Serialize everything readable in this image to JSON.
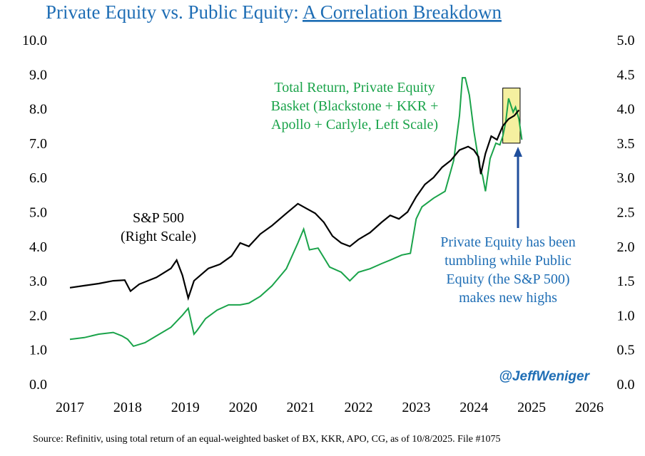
{
  "title": {
    "main": "Private Equity vs. Public Equity: ",
    "link": "A Correlation Breakdown"
  },
  "handle": "@JeffWeniger",
  "source": "Source: Refinitiv, using total return of an equal-weighted basket of BX, KKR, APO, CG, as of 10/8/2025. File #1075",
  "colors": {
    "title": "#1f6eb5",
    "pe_series": "#1aa34a",
    "sp_series": "#000000",
    "arrow": "#1f4e9c",
    "highlight_fill": "#f5f0a0",
    "highlight_stroke": "#000000"
  },
  "annotations": {
    "pe_label": [
      "Total Return, Private Equity",
      "Basket (Blackstone + KKR +",
      "Apollo + Carlyle, Left Scale)"
    ],
    "sp_label": [
      "S&P 500",
      "(Right Scale)"
    ],
    "callout": [
      "Private Equity has been",
      "tumbling while Public",
      "Equity (the S&P 500)",
      "makes new highs"
    ]
  },
  "chart_data": {
    "type": "line",
    "x_ticks": [
      "2017",
      "2018",
      "2019",
      "2020",
      "2021",
      "2022",
      "2023",
      "2024",
      "2025",
      "2026"
    ],
    "xlim": [
      2017,
      2026
    ],
    "y_left": {
      "ticks": [
        "10.0",
        "9.0",
        "8.0",
        "7.0",
        "6.0",
        "5.0",
        "4.0",
        "3.0",
        "2.0",
        "1.0",
        "0.0"
      ],
      "ylim": [
        0,
        10
      ]
    },
    "y_right": {
      "ticks": [
        "5.0",
        "4.5",
        "4.0",
        "3.5",
        "3.0",
        "2.5",
        "2.0",
        "1.5",
        "1.0",
        "0.5",
        "0.0"
      ],
      "ylim": [
        0,
        5
      ]
    },
    "grid": false,
    "series": [
      {
        "name": "Total Return, Private Equity Basket (Blackstone + KKR + Apollo + Carlyle, Left Scale)",
        "axis": "left",
        "color": "#1aa34a",
        "points": [
          [
            2017.0,
            1.3
          ],
          [
            2017.25,
            1.35
          ],
          [
            2017.5,
            1.45
          ],
          [
            2017.75,
            1.5
          ],
          [
            2017.9,
            1.4
          ],
          [
            2018.0,
            1.3
          ],
          [
            2018.1,
            1.1
          ],
          [
            2018.3,
            1.2
          ],
          [
            2018.5,
            1.4
          ],
          [
            2018.75,
            1.65
          ],
          [
            2018.95,
            2.0
          ],
          [
            2019.05,
            2.2
          ],
          [
            2019.15,
            1.45
          ],
          [
            2019.2,
            1.55
          ],
          [
            2019.35,
            1.9
          ],
          [
            2019.55,
            2.15
          ],
          [
            2019.75,
            2.3
          ],
          [
            2019.95,
            2.3
          ],
          [
            2020.1,
            2.35
          ],
          [
            2020.3,
            2.55
          ],
          [
            2020.5,
            2.85
          ],
          [
            2020.75,
            3.35
          ],
          [
            2020.95,
            4.1
          ],
          [
            2021.05,
            4.5
          ],
          [
            2021.15,
            3.9
          ],
          [
            2021.3,
            3.95
          ],
          [
            2021.5,
            3.4
          ],
          [
            2021.7,
            3.25
          ],
          [
            2021.85,
            3.0
          ],
          [
            2022.0,
            3.25
          ],
          [
            2022.2,
            3.35
          ],
          [
            2022.4,
            3.5
          ],
          [
            2022.55,
            3.6
          ],
          [
            2022.75,
            3.75
          ],
          [
            2022.9,
            3.8
          ],
          [
            2023.0,
            4.8
          ],
          [
            2023.1,
            5.15
          ],
          [
            2023.3,
            5.4
          ],
          [
            2023.5,
            5.6
          ],
          [
            2023.65,
            6.5
          ],
          [
            2023.75,
            7.8
          ],
          [
            2023.8,
            8.9
          ],
          [
            2023.85,
            8.9
          ],
          [
            2023.92,
            8.4
          ],
          [
            2024.0,
            7.35
          ],
          [
            2024.1,
            6.3
          ],
          [
            2024.15,
            6.05
          ],
          [
            2024.2,
            5.6
          ],
          [
            2024.28,
            6.55
          ],
          [
            2024.38,
            7.0
          ],
          [
            2024.45,
            6.95
          ],
          [
            2024.5,
            7.2
          ],
          [
            2024.55,
            7.6
          ],
          [
            2024.6,
            8.3
          ],
          [
            2024.68,
            7.9
          ],
          [
            2024.72,
            8.05
          ],
          [
            2024.78,
            7.7
          ],
          [
            2024.83,
            7.1
          ]
        ]
      },
      {
        "name": "S&P 500 (Right Scale)",
        "axis": "right",
        "color": "#000000",
        "points": [
          [
            2017.0,
            1.4
          ],
          [
            2017.25,
            1.43
          ],
          [
            2017.5,
            1.46
          ],
          [
            2017.75,
            1.5
          ],
          [
            2017.95,
            1.51
          ],
          [
            2018.05,
            1.35
          ],
          [
            2018.2,
            1.45
          ],
          [
            2018.5,
            1.55
          ],
          [
            2018.75,
            1.68
          ],
          [
            2018.85,
            1.8
          ],
          [
            2018.95,
            1.58
          ],
          [
            2019.05,
            1.25
          ],
          [
            2019.15,
            1.5
          ],
          [
            2019.4,
            1.68
          ],
          [
            2019.6,
            1.74
          ],
          [
            2019.8,
            1.86
          ],
          [
            2019.95,
            2.05
          ],
          [
            2020.1,
            2.0
          ],
          [
            2020.3,
            2.18
          ],
          [
            2020.5,
            2.3
          ],
          [
            2020.75,
            2.48
          ],
          [
            2020.95,
            2.62
          ],
          [
            2021.1,
            2.55
          ],
          [
            2021.25,
            2.48
          ],
          [
            2021.4,
            2.35
          ],
          [
            2021.55,
            2.15
          ],
          [
            2021.7,
            2.05
          ],
          [
            2021.85,
            2.0
          ],
          [
            2022.0,
            2.1
          ],
          [
            2022.2,
            2.2
          ],
          [
            2022.4,
            2.35
          ],
          [
            2022.55,
            2.45
          ],
          [
            2022.7,
            2.4
          ],
          [
            2022.85,
            2.5
          ],
          [
            2023.0,
            2.72
          ],
          [
            2023.15,
            2.9
          ],
          [
            2023.3,
            3.0
          ],
          [
            2023.45,
            3.15
          ],
          [
            2023.6,
            3.25
          ],
          [
            2023.75,
            3.4
          ],
          [
            2023.9,
            3.45
          ],
          [
            2024.0,
            3.4
          ],
          [
            2024.08,
            3.3
          ],
          [
            2024.12,
            3.05
          ],
          [
            2024.2,
            3.35
          ],
          [
            2024.3,
            3.6
          ],
          [
            2024.4,
            3.55
          ],
          [
            2024.5,
            3.75
          ],
          [
            2024.6,
            3.85
          ],
          [
            2024.7,
            3.9
          ],
          [
            2024.78,
            3.98
          ]
        ]
      }
    ],
    "highlight": {
      "x_range": [
        2024.5,
        2024.8
      ],
      "y_left_range": [
        7.0,
        8.6
      ]
    }
  }
}
